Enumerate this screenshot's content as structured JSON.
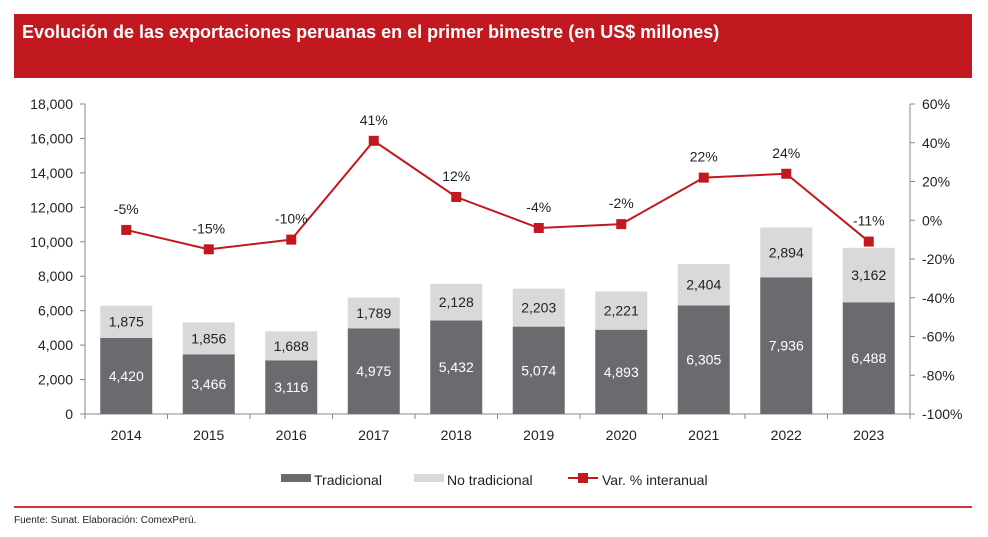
{
  "chart_data": {
    "type": "bar",
    "title": "Evolución de las exportaciones peruanas en el primer bimestre (en US$ millones)",
    "categories": [
      "2014",
      "2015",
      "2016",
      "2017",
      "2018",
      "2019",
      "2020",
      "2021",
      "2022",
      "2023"
    ],
    "series": [
      {
        "name": "Tradicional",
        "type": "bar",
        "stacked": true,
        "color": "#6b6a6e",
        "values": [
          4420,
          3466,
          3116,
          4975,
          5432,
          5074,
          4893,
          6305,
          7936,
          6488
        ],
        "labels": [
          "4,420",
          "3,466",
          "3,116",
          "4,975",
          "5,432",
          "5,074",
          "4,893",
          "6,305",
          "7,936",
          "6,488"
        ]
      },
      {
        "name": "No tradicional",
        "type": "bar",
        "stacked": true,
        "color": "#d9d9d9",
        "values": [
          1875,
          1856,
          1688,
          1789,
          2128,
          2203,
          2221,
          2404,
          2894,
          3162
        ],
        "labels": [
          "1,875",
          "1,856",
          "1,688",
          "1,789",
          "2,128",
          "2,203",
          "2,221",
          "2,404",
          "2,894",
          "3,162"
        ]
      },
      {
        "name": "Var. % interanual",
        "type": "line",
        "axis": "right",
        "color": "#c1191f",
        "values": [
          -5,
          -15,
          -10,
          41,
          12,
          -4,
          -2,
          22,
          24,
          -11
        ],
        "labels": [
          "-5%",
          "-15%",
          "-10%",
          "41%",
          "12%",
          "-4%",
          "-2%",
          "22%",
          "24%",
          "-11%"
        ]
      }
    ],
    "ylim": [
      0,
      18000
    ],
    "yticks": [
      "0",
      "2,000",
      "4,000",
      "6,000",
      "8,000",
      "10,000",
      "12,000",
      "14,000",
      "16,000",
      "18,000"
    ],
    "y2lim": [
      -100,
      60
    ],
    "y2ticks": [
      "-100%",
      "-80%",
      "-60%",
      "-40%",
      "-20%",
      "0%",
      "20%",
      "40%",
      "60%"
    ],
    "legend_position": "bottom",
    "grid": false
  },
  "source": "Fuente: Sunat. Elaboración: ComexPerú."
}
